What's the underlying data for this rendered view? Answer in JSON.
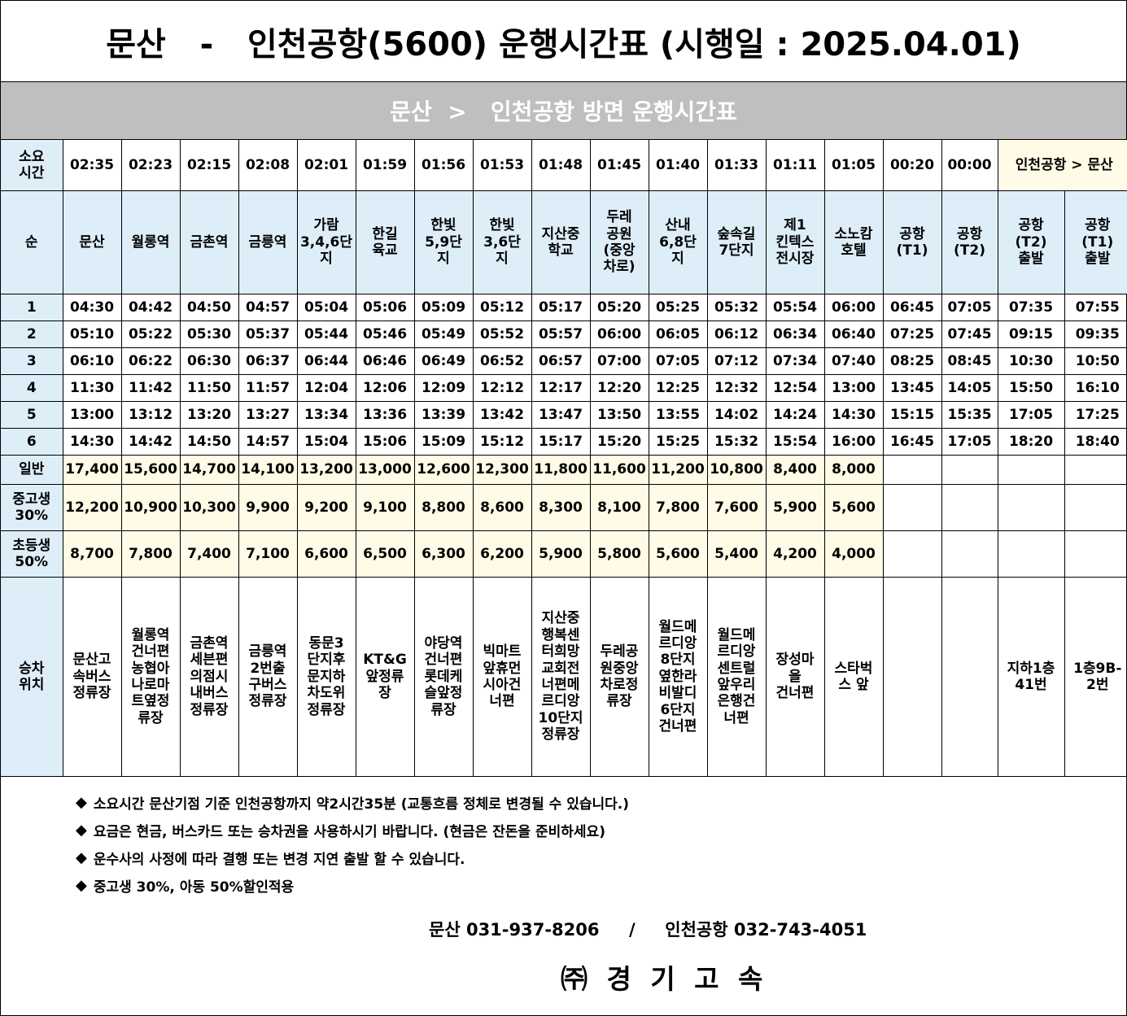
{
  "header": {
    "title": "문산   -   인천공항(5600) 운행시간표 (시행일 : 2025.04.01)",
    "subtitle": "문산  >   인천공항 방면 운행시간표"
  },
  "table": {
    "duration_label": "소요\n시간",
    "durations": [
      "02:35",
      "02:23",
      "02:15",
      "02:08",
      "02:01",
      "01:59",
      "01:56",
      "01:53",
      "01:48",
      "01:45",
      "01:40",
      "01:33",
      "01:11",
      "01:05",
      "00:20",
      "00:00"
    ],
    "return_label": "인천공항 > 문산",
    "seq_label": "순",
    "stops": [
      "문산",
      "월롱역",
      "금촌역",
      "금릉역",
      "가람\n3,4,6단\n지",
      "한길\n육교",
      "한빛\n5,9단\n지",
      "한빛\n3,6단\n지",
      "지산중\n학교",
      "두레\n공원\n(중앙\n차로)",
      "산내\n6,8단\n지",
      "숲속길\n7단지",
      "제1\n킨텍스\n전시장",
      "소노캄\n호텔",
      "공항\n(T1)",
      "공항\n(T2)",
      "공항\n(T2)\n출발",
      "공항\n(T1)\n출발"
    ],
    "trips": [
      {
        "no": "1",
        "times": [
          "04:30",
          "04:42",
          "04:50",
          "04:57",
          "05:04",
          "05:06",
          "05:09",
          "05:12",
          "05:17",
          "05:20",
          "05:25",
          "05:32",
          "05:54",
          "06:00",
          "06:45",
          "07:05",
          "07:35",
          "07:55"
        ]
      },
      {
        "no": "2",
        "times": [
          "05:10",
          "05:22",
          "05:30",
          "05:37",
          "05:44",
          "05:46",
          "05:49",
          "05:52",
          "05:57",
          "06:00",
          "06:05",
          "06:12",
          "06:34",
          "06:40",
          "07:25",
          "07:45",
          "09:15",
          "09:35"
        ]
      },
      {
        "no": "3",
        "times": [
          "06:10",
          "06:22",
          "06:30",
          "06:37",
          "06:44",
          "06:46",
          "06:49",
          "06:52",
          "06:57",
          "07:00",
          "07:05",
          "07:12",
          "07:34",
          "07:40",
          "08:25",
          "08:45",
          "10:30",
          "10:50"
        ]
      },
      {
        "no": "4",
        "times": [
          "11:30",
          "11:42",
          "11:50",
          "11:57",
          "12:04",
          "12:06",
          "12:09",
          "12:12",
          "12:17",
          "12:20",
          "12:25",
          "12:32",
          "12:54",
          "13:00",
          "13:45",
          "14:05",
          "15:50",
          "16:10"
        ]
      },
      {
        "no": "5",
        "times": [
          "13:00",
          "13:12",
          "13:20",
          "13:27",
          "13:34",
          "13:36",
          "13:39",
          "13:42",
          "13:47",
          "13:50",
          "13:55",
          "14:02",
          "14:24",
          "14:30",
          "15:15",
          "15:35",
          "17:05",
          "17:25"
        ]
      },
      {
        "no": "6",
        "times": [
          "14:30",
          "14:42",
          "14:50",
          "14:57",
          "15:04",
          "15:06",
          "15:09",
          "15:12",
          "15:17",
          "15:20",
          "15:25",
          "15:32",
          "15:54",
          "16:00",
          "16:45",
          "17:05",
          "18:20",
          "18:40"
        ]
      }
    ],
    "fares": [
      {
        "label": "일반",
        "values": [
          "17,400",
          "15,600",
          "14,700",
          "14,100",
          "13,200",
          "13,000",
          "12,600",
          "12,300",
          "11,800",
          "11,600",
          "11,200",
          "10,800",
          "8,400",
          "8,000"
        ]
      },
      {
        "label": "중고생\n30%",
        "values": [
          "12,200",
          "10,900",
          "10,300",
          "9,900",
          "9,200",
          "9,100",
          "8,800",
          "8,600",
          "8,300",
          "8,100",
          "7,800",
          "7,600",
          "5,900",
          "5,600"
        ]
      },
      {
        "label": "초등생\n50%",
        "values": [
          "8,700",
          "7,800",
          "7,400",
          "7,100",
          "6,600",
          "6,500",
          "6,300",
          "6,200",
          "5,900",
          "5,800",
          "5,600",
          "5,400",
          "4,200",
          "4,000"
        ]
      }
    ],
    "boarding_label": "승차\n위치",
    "boarding": [
      "문산고\n속버스\n정류장",
      "월롱역\n건너편\n농협아\n나로마\n트옆정\n류장",
      "금촌역\n세븐편\n의점시\n내버스\n정류장",
      "금릉역\n2번출\n구버스\n정류장",
      "동문3\n단지후\n문지하\n차도위\n정류장",
      "KT&G\n앞정류\n장",
      "야당역\n건너편\n롯데케\n슬앞정\n류장",
      "빅마트\n앞휴먼\n시아건\n너편",
      "지산중\n행복센\n터희망\n교회전\n너편메\n르디앙\n10단지\n정류장",
      "두레공\n원중앙\n차로정\n류장",
      "월드메\n르디앙\n8단지\n옆한라\n비발디\n6단지\n건너편",
      "월드메\n르디앙\n센트럴\n앞우리\n은행건\n너편",
      "장성마\n을\n건너편",
      "스타벅\n스 앞",
      "",
      "",
      "지하1층\n41번",
      "1층9B-\n2번"
    ]
  },
  "notes": [
    "소요시간 문산기점 기준 인천공항까지 약2시간35분 (교통흐름 정체로 변경될 수 있습니다.)",
    "요금은 현금, 버스카드 또는 승차권을 사용하시기 바랍니다. (현금은 잔돈을 준비하세요)",
    "운수사의 사정에 따라 결행 또는 변경 지연 출발 할 수 있습니다.",
    "중고생 30%, 아동 50%할인적용"
  ],
  "note_bullet": "◆",
  "contact": "문산 031-937-8206     /     인천공항 032-743-4051",
  "company": "㈜ 경 기 고 속"
}
